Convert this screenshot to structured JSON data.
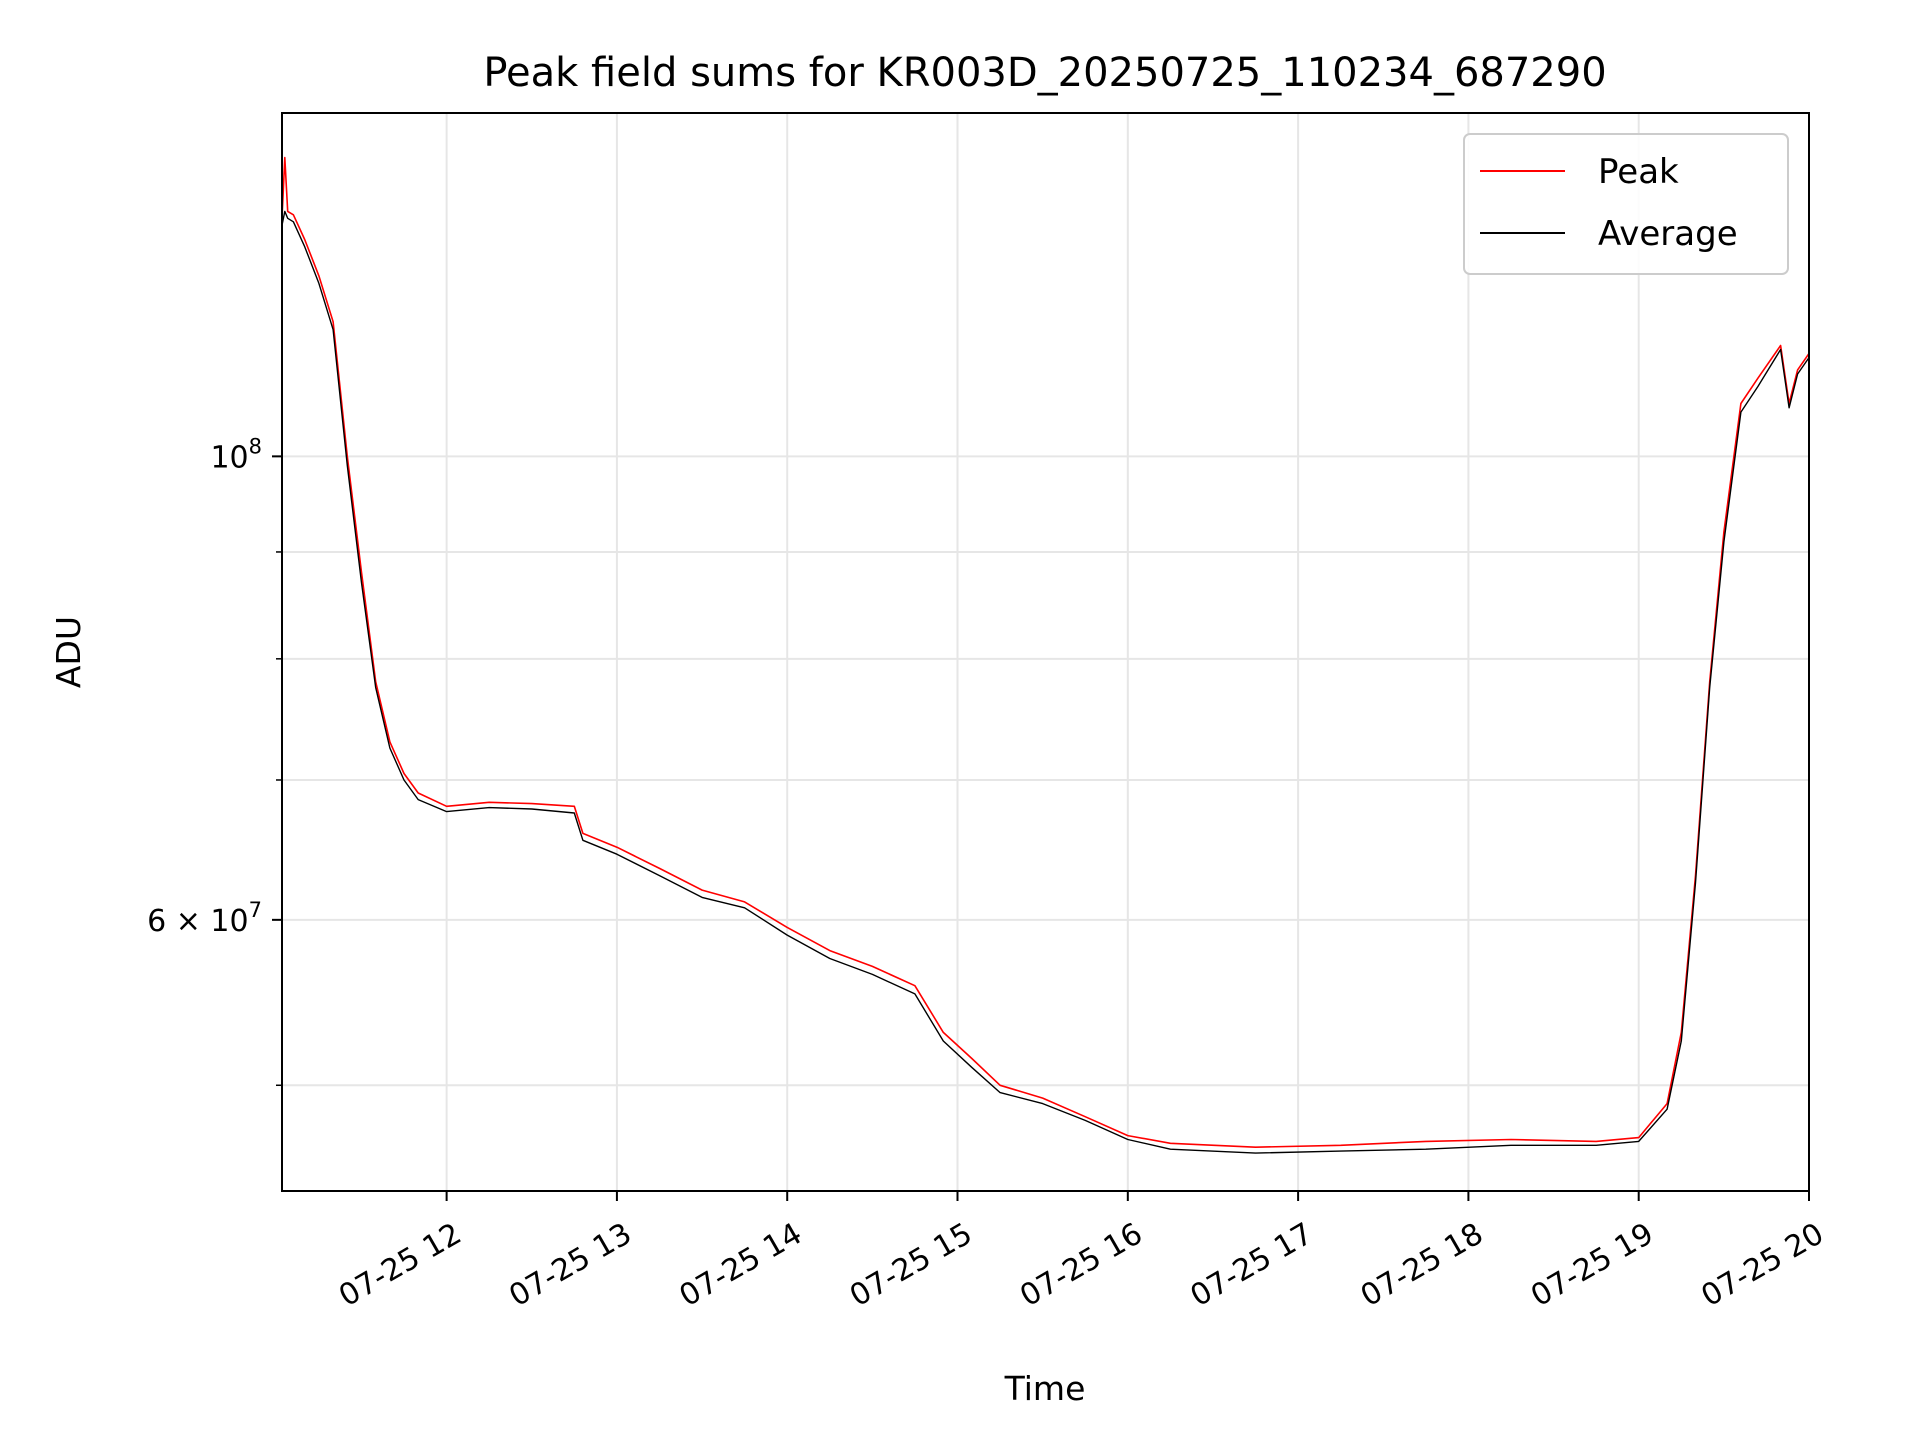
{
  "chart_data": {
    "type": "line",
    "title": "Peak field sums for KR003D_20250725_110234_687290",
    "xlabel": "Time",
    "ylabel": "ADU",
    "x_ticks": [
      "07-25 12",
      "07-25 13",
      "07-25 14",
      "07-25 15",
      "07-25 16",
      "07-25 17",
      "07-25 18",
      "07-25 19",
      "07-25 20"
    ],
    "y_ticks": [
      {
        "value": 100000000,
        "mantissa": "",
        "base": "10",
        "exp": "8"
      },
      {
        "value": 60000000,
        "mantissa": "6 × ",
        "base": "10",
        "exp": "7"
      }
    ],
    "y_scale": "log",
    "xlim": [
      "2025-07-25 11:02",
      "2025-07-25 20:00"
    ],
    "ylim": [
      44500000,
      146000000
    ],
    "grid": true,
    "legend_position": "top-right",
    "colors": {
      "peak": "#ff0000",
      "average": "#000000",
      "grid": "#e6e6e6"
    },
    "series": [
      {
        "name": "Peak",
        "color": "#ff0000",
        "points": [
          [
            "2025-07-25 11:02",
            130000000
          ],
          [
            "2025-07-25 11:03",
            139000000
          ],
          [
            "2025-07-25 11:04",
            131000000
          ],
          [
            "2025-07-25 11:06",
            130500000
          ],
          [
            "2025-07-25 11:10",
            127000000
          ],
          [
            "2025-07-25 11:15",
            122000000
          ],
          [
            "2025-07-25 11:20",
            116000000
          ],
          [
            "2025-07-25 11:25",
            100000000
          ],
          [
            "2025-07-25 11:30",
            88000000
          ],
          [
            "2025-07-25 11:35",
            78000000
          ],
          [
            "2025-07-25 11:40",
            73000000
          ],
          [
            "2025-07-25 11:45",
            70500000
          ],
          [
            "2025-07-25 11:50",
            69000000
          ],
          [
            "2025-07-25 12:00",
            68000000
          ],
          [
            "2025-07-25 12:15",
            68300000
          ],
          [
            "2025-07-25 12:30",
            68200000
          ],
          [
            "2025-07-25 12:45",
            68000000
          ],
          [
            "2025-07-25 12:48",
            66000000
          ],
          [
            "2025-07-25 13:00",
            65000000
          ],
          [
            "2025-07-25 13:15",
            63500000
          ],
          [
            "2025-07-25 13:30",
            62000000
          ],
          [
            "2025-07-25 13:45",
            61200000
          ],
          [
            "2025-07-25 14:00",
            59500000
          ],
          [
            "2025-07-25 14:15",
            58000000
          ],
          [
            "2025-07-25 14:30",
            57000000
          ],
          [
            "2025-07-25 14:45",
            55800000
          ],
          [
            "2025-07-25 14:55",
            53000000
          ],
          [
            "2025-07-25 15:05",
            51500000
          ],
          [
            "2025-07-25 15:15",
            50000000
          ],
          [
            "2025-07-25 15:30",
            49300000
          ],
          [
            "2025-07-25 15:45",
            48300000
          ],
          [
            "2025-07-25 16:00",
            47300000
          ],
          [
            "2025-07-25 16:15",
            46900000
          ],
          [
            "2025-07-25 16:45",
            46700000
          ],
          [
            "2025-07-25 17:15",
            46800000
          ],
          [
            "2025-07-25 17:45",
            47000000
          ],
          [
            "2025-07-25 18:15",
            47100000
          ],
          [
            "2025-07-25 18:45",
            47000000
          ],
          [
            "2025-07-25 19:00",
            47200000
          ],
          [
            "2025-07-25 19:10",
            49000000
          ],
          [
            "2025-07-25 19:15",
            53000000
          ],
          [
            "2025-07-25 19:20",
            63000000
          ],
          [
            "2025-07-25 19:25",
            78000000
          ],
          [
            "2025-07-25 19:30",
            92000000
          ],
          [
            "2025-07-25 19:36",
            106000000
          ],
          [
            "2025-07-25 19:42",
            109000000
          ],
          [
            "2025-07-25 19:50",
            113000000
          ],
          [
            "2025-07-25 19:53",
            106000000
          ],
          [
            "2025-07-25 19:56",
            110000000
          ],
          [
            "2025-07-25 20:00",
            112000000
          ]
        ]
      },
      {
        "name": "Average",
        "color": "#000000",
        "points": [
          [
            "2025-07-25 11:02",
            129000000
          ],
          [
            "2025-07-25 11:03",
            131000000
          ],
          [
            "2025-07-25 11:04",
            130000000
          ],
          [
            "2025-07-25 11:06",
            129500000
          ],
          [
            "2025-07-25 11:10",
            126000000
          ],
          [
            "2025-07-25 11:15",
            121000000
          ],
          [
            "2025-07-25 11:20",
            115000000
          ],
          [
            "2025-07-25 11:25",
            99000000
          ],
          [
            "2025-07-25 11:30",
            87000000
          ],
          [
            "2025-07-25 11:35",
            77500000
          ],
          [
            "2025-07-25 11:40",
            72500000
          ],
          [
            "2025-07-25 11:45",
            70000000
          ],
          [
            "2025-07-25 11:50",
            68500000
          ],
          [
            "2025-07-25 12:00",
            67600000
          ],
          [
            "2025-07-25 12:15",
            67900000
          ],
          [
            "2025-07-25 12:30",
            67800000
          ],
          [
            "2025-07-25 12:45",
            67500000
          ],
          [
            "2025-07-25 12:48",
            65500000
          ],
          [
            "2025-07-25 13:00",
            64500000
          ],
          [
            "2025-07-25 13:15",
            63000000
          ],
          [
            "2025-07-25 13:30",
            61500000
          ],
          [
            "2025-07-25 13:45",
            60800000
          ],
          [
            "2025-07-25 14:00",
            59000000
          ],
          [
            "2025-07-25 14:15",
            57500000
          ],
          [
            "2025-07-25 14:30",
            56500000
          ],
          [
            "2025-07-25 14:45",
            55300000
          ],
          [
            "2025-07-25 14:55",
            52500000
          ],
          [
            "2025-07-25 15:05",
            51000000
          ],
          [
            "2025-07-25 15:15",
            49600000
          ],
          [
            "2025-07-25 15:30",
            49000000
          ],
          [
            "2025-07-25 15:45",
            48100000
          ],
          [
            "2025-07-25 16:00",
            47100000
          ],
          [
            "2025-07-25 16:15",
            46600000
          ],
          [
            "2025-07-25 16:45",
            46400000
          ],
          [
            "2025-07-25 17:15",
            46500000
          ],
          [
            "2025-07-25 17:45",
            46600000
          ],
          [
            "2025-07-25 18:15",
            46800000
          ],
          [
            "2025-07-25 18:45",
            46800000
          ],
          [
            "2025-07-25 19:00",
            47000000
          ],
          [
            "2025-07-25 19:10",
            48700000
          ],
          [
            "2025-07-25 19:15",
            52500000
          ],
          [
            "2025-07-25 19:20",
            62500000
          ],
          [
            "2025-07-25 19:25",
            77500000
          ],
          [
            "2025-07-25 19:30",
            91000000
          ],
          [
            "2025-07-25 19:36",
            105000000
          ],
          [
            "2025-07-25 19:42",
            108000000
          ],
          [
            "2025-07-25 19:50",
            112500000
          ],
          [
            "2025-07-25 19:53",
            105500000
          ],
          [
            "2025-07-25 19:56",
            109500000
          ],
          [
            "2025-07-25 20:00",
            111500000
          ]
        ]
      }
    ]
  }
}
